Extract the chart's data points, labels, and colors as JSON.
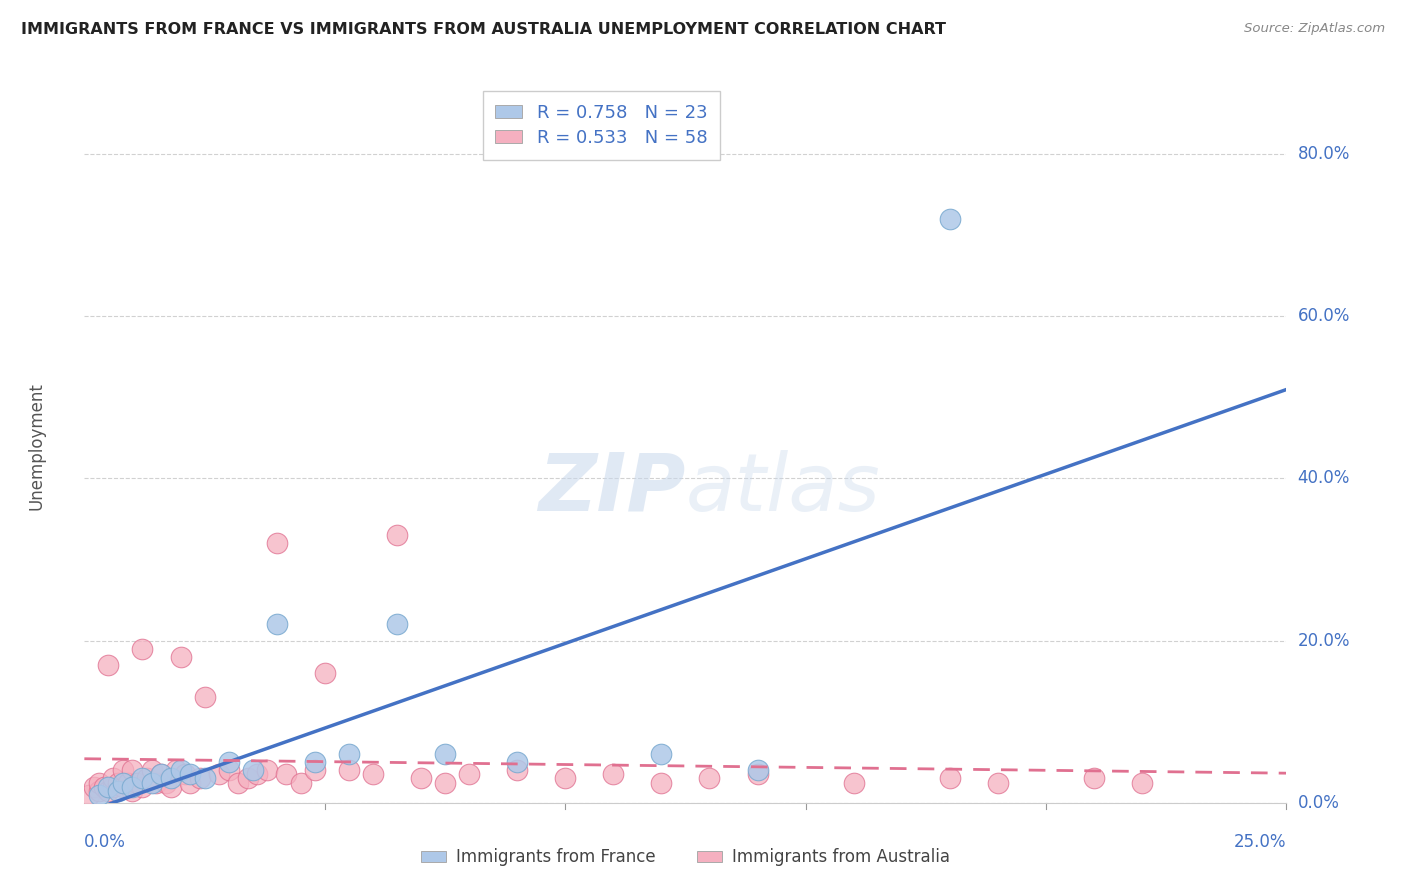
{
  "title": "IMMIGRANTS FROM FRANCE VS IMMIGRANTS FROM AUSTRALIA UNEMPLOYMENT CORRELATION CHART",
  "source": "Source: ZipAtlas.com",
  "ylabel": "Unemployment",
  "y_tick_vals": [
    0.0,
    0.2,
    0.4,
    0.6,
    0.8
  ],
  "y_tick_labels": [
    "0.0%",
    "20.0%",
    "40.0%",
    "60.0%",
    "80.0%"
  ],
  "x_min": 0.0,
  "x_max": 0.25,
  "y_min": 0.0,
  "y_max": 0.88,
  "france_color_fill": "#aec8e8",
  "france_color_edge": "#7aaad0",
  "australia_color_fill": "#f5b0c0",
  "australia_color_edge": "#e07090",
  "france_line_color": "#4472c4",
  "australia_line_color": "#e07090",
  "legend_color": "#4472c4",
  "watermark_color": "#c5d8ee",
  "background_color": "#ffffff",
  "grid_color": "#cccccc",
  "france_R": 0.758,
  "france_N": 23,
  "australia_R": 0.533,
  "australia_N": 58,
  "france_x": [
    0.003,
    0.005,
    0.007,
    0.008,
    0.01,
    0.012,
    0.014,
    0.016,
    0.018,
    0.02,
    0.022,
    0.025,
    0.03,
    0.035,
    0.04,
    0.048,
    0.055,
    0.065,
    0.075,
    0.09,
    0.12,
    0.14,
    0.18
  ],
  "france_y": [
    0.01,
    0.02,
    0.015,
    0.025,
    0.02,
    0.03,
    0.025,
    0.035,
    0.03,
    0.04,
    0.035,
    0.03,
    0.05,
    0.04,
    0.22,
    0.05,
    0.06,
    0.22,
    0.06,
    0.05,
    0.06,
    0.04,
    0.72
  ],
  "australia_x": [
    0.001,
    0.002,
    0.003,
    0.003,
    0.004,
    0.005,
    0.005,
    0.006,
    0.006,
    0.007,
    0.008,
    0.008,
    0.009,
    0.01,
    0.01,
    0.011,
    0.012,
    0.012,
    0.013,
    0.014,
    0.015,
    0.016,
    0.017,
    0.018,
    0.019,
    0.02,
    0.021,
    0.022,
    0.024,
    0.025,
    0.028,
    0.03,
    0.032,
    0.034,
    0.036,
    0.038,
    0.04,
    0.042,
    0.045,
    0.048,
    0.05,
    0.055,
    0.06,
    0.065,
    0.07,
    0.075,
    0.08,
    0.09,
    0.1,
    0.11,
    0.12,
    0.13,
    0.14,
    0.16,
    0.18,
    0.19,
    0.21,
    0.22
  ],
  "australia_y": [
    0.01,
    0.02,
    0.015,
    0.025,
    0.02,
    0.17,
    0.015,
    0.02,
    0.03,
    0.025,
    0.02,
    0.04,
    0.025,
    0.015,
    0.04,
    0.025,
    0.02,
    0.19,
    0.03,
    0.04,
    0.025,
    0.035,
    0.025,
    0.02,
    0.04,
    0.18,
    0.035,
    0.025,
    0.03,
    0.13,
    0.035,
    0.04,
    0.025,
    0.03,
    0.035,
    0.04,
    0.32,
    0.035,
    0.025,
    0.04,
    0.16,
    0.04,
    0.035,
    0.33,
    0.03,
    0.025,
    0.035,
    0.04,
    0.03,
    0.035,
    0.025,
    0.03,
    0.035,
    0.025,
    0.03,
    0.025,
    0.03,
    0.025
  ]
}
